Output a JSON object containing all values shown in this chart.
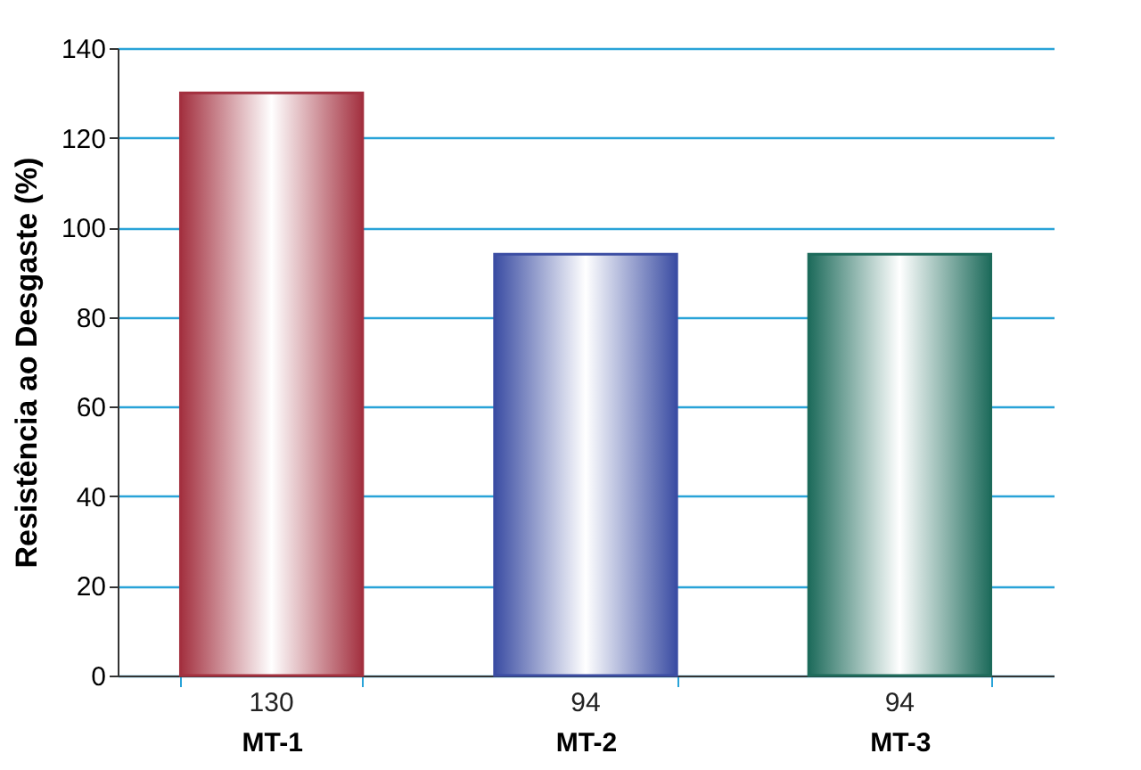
{
  "chart_data": {
    "type": "bar",
    "ylabel": "Resistência ao Desgaste (%)",
    "categories": [
      "MT-1",
      "MT-2",
      "MT-3"
    ],
    "values": [
      130,
      94,
      94
    ],
    "colors": [
      "#a3303f",
      "#3b4da3",
      "#1d6b5b"
    ],
    "data_labels": true,
    "ylim": [
      0,
      140
    ],
    "yticks": [
      0,
      20,
      40,
      60,
      80,
      100,
      120,
      140
    ],
    "grid": "y"
  }
}
